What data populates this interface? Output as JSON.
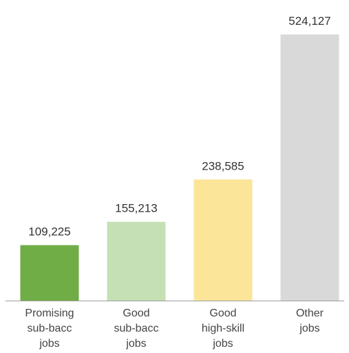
{
  "chart_data": {
    "type": "bar",
    "categories": [
      [
        "Promising",
        "sub-bacc",
        "jobs"
      ],
      [
        "Good",
        "sub-bacc",
        "jobs"
      ],
      [
        "Good",
        "high-skill",
        "jobs"
      ],
      [
        "Other",
        "jobs"
      ]
    ],
    "values": [
      109225,
      155213,
      238585,
      524127
    ],
    "value_labels": [
      "109,225",
      "155,213",
      "238,585",
      "524,127"
    ],
    "colors": [
      "#70AD47",
      "#C5E0B4",
      "#FBE599",
      "#D9D9D9"
    ],
    "ylim": [
      0,
      524127
    ],
    "grid": false,
    "legend": "none",
    "title": "",
    "xlabel": "",
    "ylabel": ""
  }
}
